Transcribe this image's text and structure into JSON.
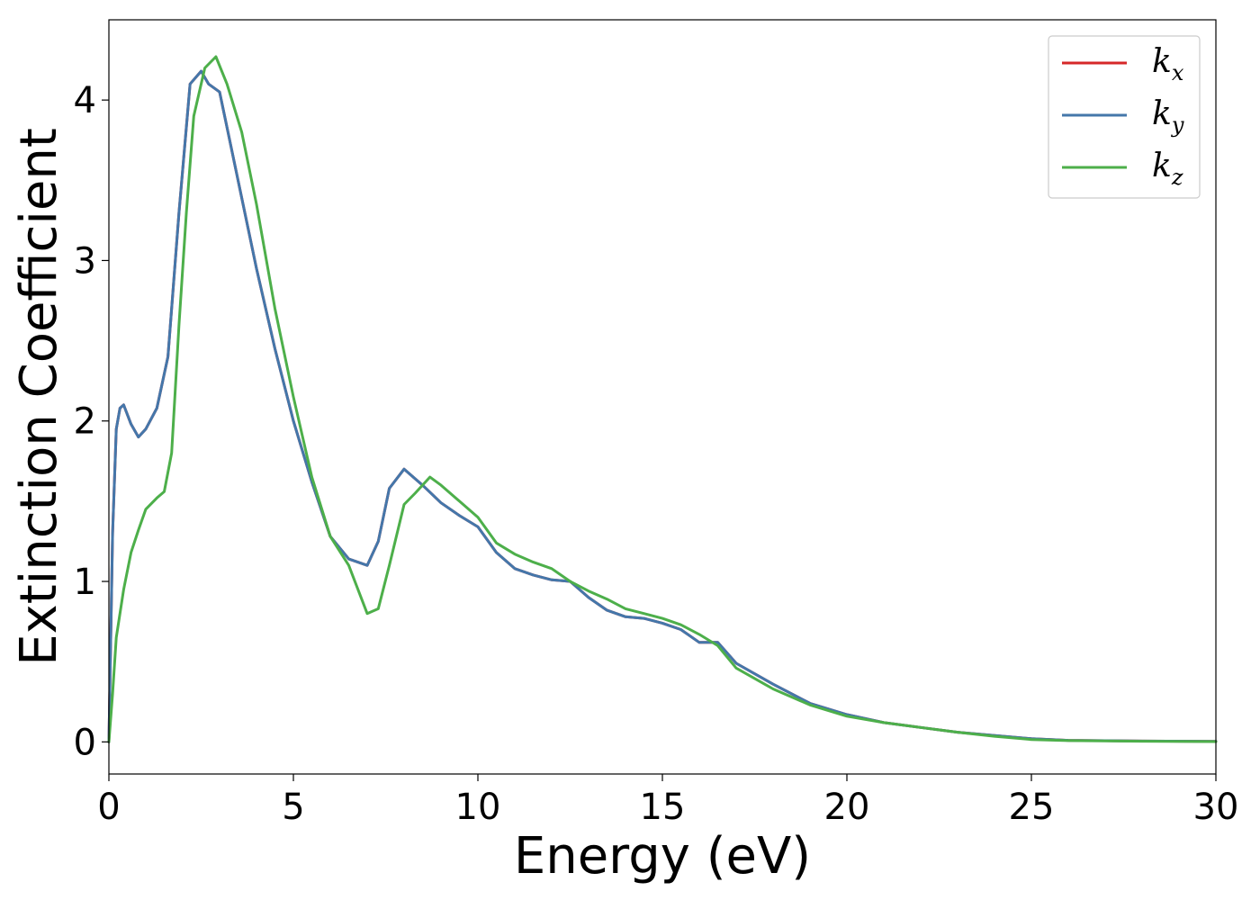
{
  "chart_data": {
    "type": "line",
    "title": "",
    "xlabel": "Energy (eV)",
    "ylabel": "Extinction Coefficient",
    "xlim": [
      0,
      30
    ],
    "ylim": [
      -0.2,
      4.5
    ],
    "xticks": [
      0,
      5,
      10,
      15,
      20,
      25,
      30
    ],
    "yticks": [
      0,
      1,
      2,
      3,
      4
    ],
    "grid": false,
    "legend_position": "top-right",
    "colors": {
      "kx": "#d62728",
      "ky": "#4477aa",
      "kz": "#4daf4a"
    },
    "legend": [
      {
        "key": "kx",
        "base": "k",
        "sub": "x"
      },
      {
        "key": "ky",
        "base": "k",
        "sub": "y"
      },
      {
        "key": "kz",
        "base": "k",
        "sub": "z"
      }
    ],
    "series": [
      {
        "key": "kx",
        "x": [
          0,
          0.1,
          0.2,
          0.3,
          0.4,
          0.6,
          0.8,
          1.0,
          1.3,
          1.6,
          1.9,
          2.2,
          2.5,
          2.7,
          3.0,
          3.5,
          4.0,
          4.5,
          5.0,
          5.5,
          6.0,
          6.5,
          7.0,
          7.3,
          7.6,
          8.0,
          8.5,
          9.0,
          9.5,
          10.0,
          10.5,
          11.0,
          11.5,
          12.0,
          12.5,
          13.0,
          13.5,
          14.0,
          14.5,
          15.0,
          15.5,
          16.0,
          16.5,
          17.0,
          18.0,
          19.0,
          20.0,
          21.0,
          22.0,
          23.0,
          24.0,
          25.0,
          26.0,
          28.0,
          30.0
        ],
        "y": [
          0.0,
          1.3,
          1.95,
          2.08,
          2.1,
          1.98,
          1.9,
          1.95,
          2.08,
          2.4,
          3.3,
          4.1,
          4.18,
          4.1,
          4.05,
          3.5,
          2.95,
          2.45,
          2.0,
          1.62,
          1.28,
          1.14,
          1.1,
          1.25,
          1.58,
          1.7,
          1.6,
          1.49,
          1.41,
          1.34,
          1.18,
          1.08,
          1.04,
          1.01,
          1.0,
          0.9,
          0.82,
          0.78,
          0.77,
          0.74,
          0.7,
          0.62,
          0.62,
          0.49,
          0.36,
          0.24,
          0.17,
          0.12,
          0.09,
          0.06,
          0.04,
          0.02,
          0.01,
          0.005,
          0.003
        ]
      },
      {
        "key": "ky",
        "x": [
          0,
          0.1,
          0.2,
          0.3,
          0.4,
          0.6,
          0.8,
          1.0,
          1.3,
          1.6,
          1.9,
          2.2,
          2.5,
          2.7,
          3.0,
          3.5,
          4.0,
          4.5,
          5.0,
          5.5,
          6.0,
          6.5,
          7.0,
          7.3,
          7.6,
          8.0,
          8.5,
          9.0,
          9.5,
          10.0,
          10.5,
          11.0,
          11.5,
          12.0,
          12.5,
          13.0,
          13.5,
          14.0,
          14.5,
          15.0,
          15.5,
          16.0,
          16.5,
          17.0,
          18.0,
          19.0,
          20.0,
          21.0,
          22.0,
          23.0,
          24.0,
          25.0,
          26.0,
          28.0,
          30.0
        ],
        "y": [
          0.0,
          1.3,
          1.95,
          2.08,
          2.1,
          1.98,
          1.9,
          1.95,
          2.08,
          2.4,
          3.3,
          4.1,
          4.18,
          4.1,
          4.05,
          3.5,
          2.95,
          2.45,
          2.0,
          1.62,
          1.28,
          1.14,
          1.1,
          1.25,
          1.58,
          1.7,
          1.6,
          1.49,
          1.41,
          1.34,
          1.18,
          1.08,
          1.04,
          1.01,
          1.0,
          0.9,
          0.82,
          0.78,
          0.77,
          0.74,
          0.7,
          0.62,
          0.62,
          0.49,
          0.36,
          0.24,
          0.17,
          0.12,
          0.09,
          0.06,
          0.04,
          0.02,
          0.01,
          0.005,
          0.003
        ]
      },
      {
        "key": "kz",
        "x": [
          0,
          0.1,
          0.2,
          0.4,
          0.6,
          0.8,
          1.0,
          1.3,
          1.5,
          1.7,
          1.9,
          2.1,
          2.3,
          2.6,
          2.9,
          3.2,
          3.6,
          4.0,
          4.5,
          5.0,
          5.5,
          6.0,
          6.5,
          7.0,
          7.3,
          7.6,
          8.0,
          8.3,
          8.7,
          9.0,
          9.5,
          10.0,
          10.5,
          11.0,
          11.5,
          12.0,
          12.5,
          13.0,
          13.5,
          14.0,
          14.5,
          15.0,
          15.5,
          16.0,
          16.5,
          17.0,
          18.0,
          19.0,
          20.0,
          21.0,
          22.0,
          23.0,
          24.0,
          25.0,
          26.0,
          28.0,
          30.0
        ],
        "y": [
          0.0,
          0.3,
          0.65,
          0.95,
          1.18,
          1.32,
          1.45,
          1.52,
          1.56,
          1.8,
          2.6,
          3.3,
          3.9,
          4.2,
          4.27,
          4.1,
          3.8,
          3.35,
          2.7,
          2.15,
          1.65,
          1.28,
          1.1,
          0.8,
          0.83,
          1.1,
          1.48,
          1.55,
          1.65,
          1.6,
          1.5,
          1.4,
          1.24,
          1.17,
          1.12,
          1.08,
          1.0,
          0.94,
          0.89,
          0.83,
          0.8,
          0.77,
          0.73,
          0.67,
          0.6,
          0.46,
          0.33,
          0.23,
          0.16,
          0.12,
          0.09,
          0.06,
          0.035,
          0.015,
          0.008,
          0.004,
          0.002
        ]
      }
    ]
  }
}
